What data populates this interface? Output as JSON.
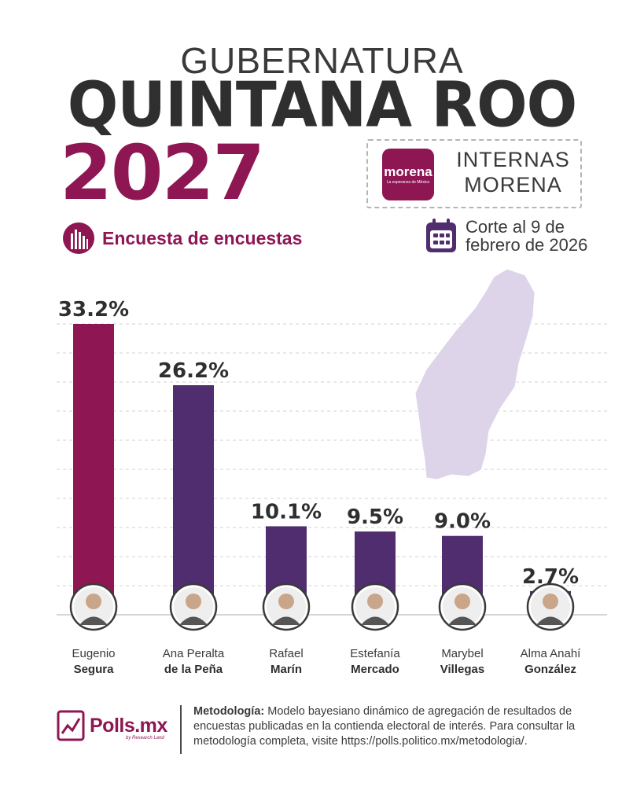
{
  "header": {
    "title_top": "GUBERNATURA",
    "title_main": "QUINTANA ROO",
    "title_year": "2027",
    "party_logo_text": "morena",
    "party_logo_tagline": "La esperanza de México",
    "party_label": "INTERNAS MORENA",
    "survey_label": "Encuesta de encuestas",
    "cutoff_line1": "Corte al 9 de",
    "cutoff_line2": "febrero de 2026"
  },
  "colors": {
    "accent": "#8e1652",
    "purple": "#4f2d6e",
    "map": "#ddd4ea"
  },
  "chart_data": {
    "type": "bar",
    "categories": [
      "Eugenio Segura",
      "Ana Peralta de la Peña",
      "Rafael Marín",
      "Estefanía Mercado",
      "Marybel Villegas",
      "Alma Anahí González"
    ],
    "name_line1": [
      "Eugenio",
      "Ana Peralta",
      "Rafael",
      "Estefanía",
      "Marybel",
      "Alma Anahí"
    ],
    "name_line2": [
      "Segura",
      "de la Peña",
      "Marín",
      "Mercado",
      "Villegas",
      "González"
    ],
    "values": [
      33.2,
      26.2,
      10.1,
      9.5,
      9.0,
      2.7
    ],
    "data_labels": [
      "33.2%",
      "26.2%",
      "10.1%",
      "9.5%",
      "9.0%",
      "2.7%"
    ],
    "bar_colors": [
      "#8e1652",
      "#4f2d6e",
      "#4f2d6e",
      "#4f2d6e",
      "#4f2d6e",
      "#4f2d6e"
    ],
    "ylim": [
      0,
      35
    ],
    "grid": true
  },
  "footer": {
    "brand": "Polls.mx",
    "brand_sub": "by Research Land",
    "method_label": "Metodología:",
    "method_text": " Modelo bayesiano dinámico de agregación de resultados de encuestas publicadas en la contienda electoral de interés. Para consultar la metodología completa, visite https://polls.politico.mx/metodologia/."
  }
}
